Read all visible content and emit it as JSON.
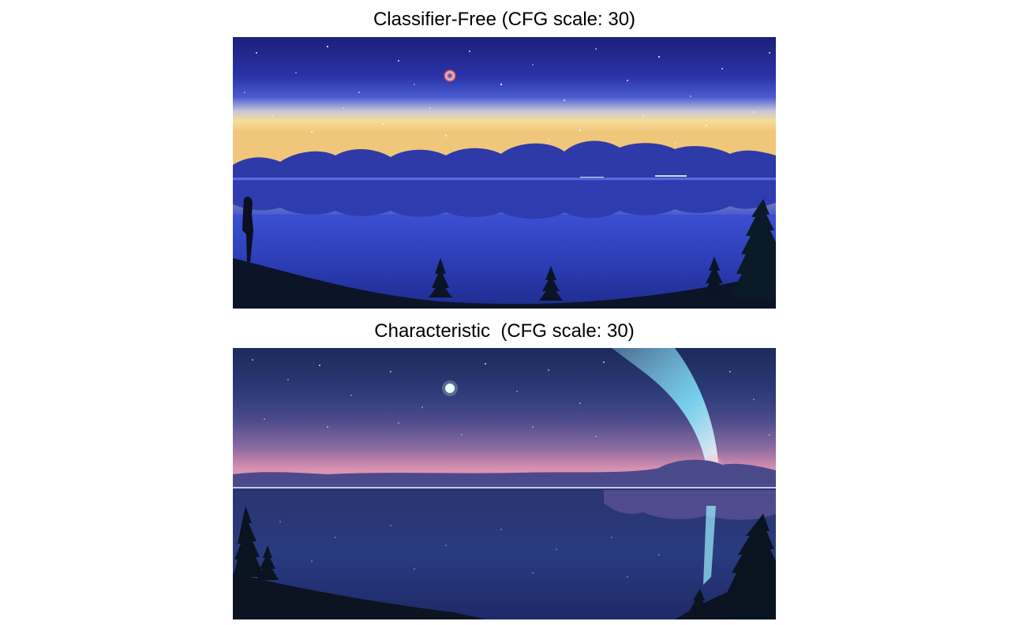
{
  "panels": [
    {
      "title": "Classifier-Free (CFG scale: 30)"
    },
    {
      "title": "Characteristic  (CFG scale: 30)"
    }
  ]
}
